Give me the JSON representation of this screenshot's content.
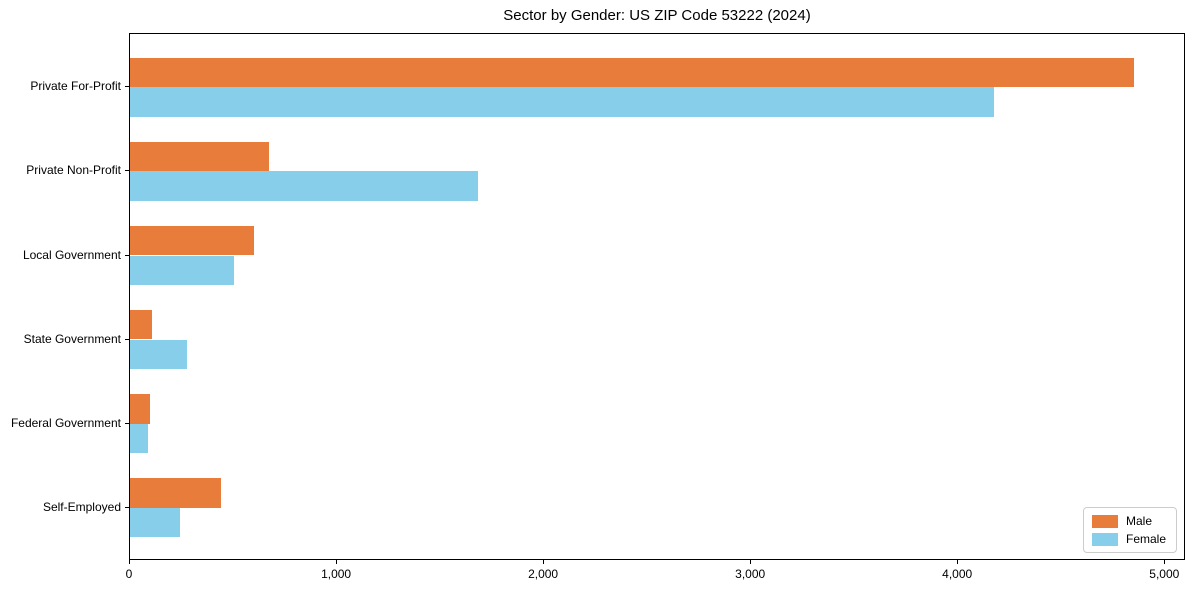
{
  "chart_data": {
    "type": "bar",
    "orientation": "horizontal",
    "title": "Sector by Gender: US ZIP Code 53222 (2024)",
    "categories": [
      "Private For-Profit",
      "Private Non-Profit",
      "Local Government",
      "State Government",
      "Federal Government",
      "Self-Employed"
    ],
    "series": [
      {
        "name": "Male",
        "color": "#E87C3A",
        "values": [
          4860,
          670,
          600,
          105,
          95,
          440
        ]
      },
      {
        "name": "Female",
        "color": "#87CEEB",
        "values": [
          4180,
          1685,
          505,
          275,
          85,
          240
        ]
      }
    ],
    "xlabel": "",
    "ylabel": "",
    "xlim": [
      0,
      5100
    ],
    "xticks": [
      0,
      1000,
      2000,
      3000,
      4000,
      5000
    ],
    "xtick_labels": [
      "0",
      "1,000",
      "2,000",
      "3,000",
      "4,000",
      "5,000"
    ],
    "grid": false,
    "legend_position": "lower right",
    "style": {
      "background": "#ffffff",
      "axis_color": "#000000",
      "legend_border": "#cccccc",
      "text_color": "#000000"
    }
  }
}
